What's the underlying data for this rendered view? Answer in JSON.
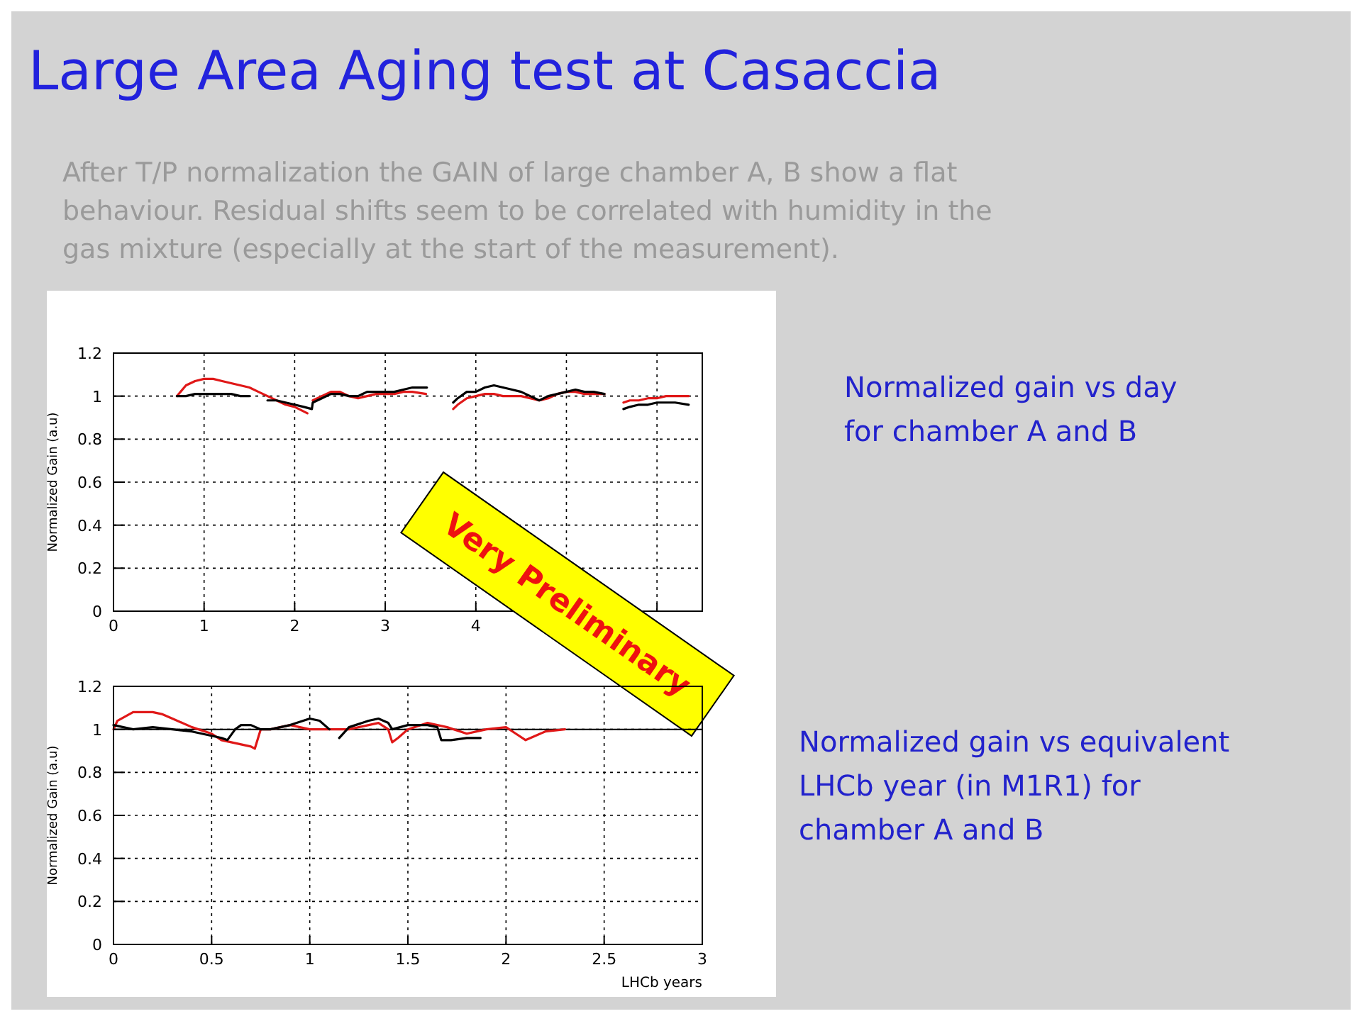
{
  "chart_data": [
    {
      "type": "line",
      "title": "Large Area Aging test at Casaccia",
      "subtitle": "After T/P normalization the GAIN of large chamber A, B show a flat behaviour. Residual shifts seem to be correlated with humidity in the gas mixture (especially at the start of the measurement).",
      "ylabel": "Normalized Gain (a.u)",
      "xlim": [
        0,
        6.5
      ],
      "xticks": [
        0,
        1,
        2,
        3,
        4,
        {
          "value": 5,
          "label": null
        },
        {
          "value": 6,
          "label": null
        }
      ],
      "ylim": [
        0,
        1.2
      ],
      "yticks": [
        0,
        0.2,
        0.4,
        0.6,
        0.8,
        1,
        1.2
      ],
      "grid": true,
      "line_style": "solid",
      "marker": "none",
      "annotations": [
        "Normalized gain vs day for chamber A and B",
        "Very Preliminary"
      ],
      "series": [
        {
          "color": "#e01818",
          "x": [
            0.7,
            0.8,
            0.9,
            1.0,
            1.1,
            1.2,
            1.3,
            1.4,
            1.5,
            1.6,
            1.7,
            1.8,
            1.9,
            2.0,
            2.14,
            2.16,
            2.2,
            2.3,
            2.4,
            2.5,
            2.6,
            2.7,
            2.8,
            2.9,
            3.0,
            3.1,
            3.2,
            3.3,
            3.45,
            3.6,
            3.75,
            3.8,
            3.9,
            4.0,
            4.1,
            4.2,
            4.3,
            4.4,
            4.5,
            4.6,
            4.7,
            4.8,
            4.9,
            5.0,
            5.1,
            5.2,
            5.3,
            5.42,
            5.5,
            5.63,
            5.7,
            5.8,
            5.9,
            6.0,
            6.1,
            6.2,
            6.35
          ],
          "values": [
            1.0,
            1.05,
            1.07,
            1.08,
            1.08,
            1.07,
            1.06,
            1.05,
            1.04,
            1.02,
            1.0,
            0.98,
            0.96,
            0.95,
            0.92,
            null,
            0.98,
            1.0,
            1.02,
            1.02,
            1.0,
            0.99,
            1.0,
            1.01,
            1.01,
            1.01,
            1.02,
            1.02,
            1.01,
            null,
            0.94,
            0.96,
            0.99,
            1.0,
            1.01,
            1.01,
            1.0,
            1.0,
            1.0,
            0.99,
            0.98,
            0.99,
            1.01,
            1.02,
            1.02,
            1.01,
            1.01,
            1.01,
            null,
            0.97,
            0.98,
            0.98,
            0.99,
            0.99,
            1.0,
            1.0,
            1.0
          ]
        },
        {
          "color": "#000000",
          "x": [
            0.7,
            0.8,
            0.9,
            1.0,
            1.1,
            1.2,
            1.3,
            1.4,
            1.5,
            1.6,
            1.7,
            1.8,
            1.9,
            2.0,
            2.1,
            2.19,
            2.2,
            2.3,
            2.4,
            2.5,
            2.6,
            2.7,
            2.8,
            2.9,
            3.0,
            3.1,
            3.2,
            3.3,
            3.46,
            3.6,
            3.75,
            3.8,
            3.9,
            4.0,
            4.1,
            4.2,
            4.3,
            4.4,
            4.5,
            4.6,
            4.7,
            4.8,
            4.9,
            5.0,
            5.1,
            5.2,
            5.3,
            5.42,
            5.5,
            5.63,
            5.7,
            5.8,
            5.9,
            6.0,
            6.1,
            6.2,
            6.35
          ],
          "values": [
            1.0,
            1.0,
            1.01,
            1.01,
            1.01,
            1.01,
            1.01,
            1.0,
            1.0,
            null,
            0.98,
            0.98,
            0.97,
            0.96,
            0.95,
            0.94,
            0.97,
            0.99,
            1.01,
            1.01,
            1.0,
            1.0,
            1.02,
            1.02,
            1.02,
            1.02,
            1.03,
            1.04,
            1.04,
            null,
            0.97,
            0.99,
            1.02,
            1.02,
            1.04,
            1.05,
            1.04,
            1.03,
            1.02,
            1.0,
            0.98,
            1.0,
            1.01,
            1.02,
            1.03,
            1.02,
            1.02,
            1.01,
            null,
            0.94,
            0.95,
            0.96,
            0.96,
            0.97,
            0.97,
            0.97,
            0.96
          ]
        }
      ]
    },
    {
      "type": "line",
      "xlabel": "LHCb years",
      "ylabel": "Normalized Gain (a.u)",
      "xlim": [
        0,
        3
      ],
      "xticks": [
        0,
        0.5,
        1,
        1.5,
        2,
        2.5,
        3
      ],
      "ylim": [
        0,
        1.2
      ],
      "yticks": [
        0,
        0.2,
        0.4,
        0.6,
        0.8,
        1,
        1.2
      ],
      "grid": true,
      "line_style": "solid",
      "marker": "none",
      "annotations": [
        "Normalized gain vs equivalent LHCb year (in M1R1) for chamber A and B"
      ],
      "ref_lines": [
        {
          "axis": "y",
          "value": 1,
          "label": null,
          "color": "#000000",
          "line_style": "solid"
        }
      ],
      "series": [
        {
          "color": "#e01818",
          "x": [
            0,
            0.02,
            0.1,
            0.2,
            0.25,
            0.3,
            0.4,
            0.5,
            0.55,
            0.6,
            0.7,
            0.72,
            0.75,
            0.8,
            0.9,
            0.95,
            1.0,
            1.1,
            1.2,
            1.3,
            1.35,
            1.4,
            1.42,
            1.45,
            1.5,
            1.6,
            1.7,
            1.8,
            1.9,
            2.0,
            2.05,
            2.1,
            2.2,
            2.3
          ],
          "values": [
            1.0,
            1.04,
            1.08,
            1.08,
            1.07,
            1.05,
            1.01,
            0.98,
            0.95,
            0.94,
            0.92,
            0.91,
            1.0,
            1.0,
            1.02,
            1.01,
            1.0,
            1.0,
            1.0,
            1.02,
            1.03,
            1.0,
            0.94,
            0.96,
            1.0,
            1.03,
            1.01,
            0.98,
            1.0,
            1.01,
            0.98,
            0.95,
            0.99,
            1.0
          ]
        },
        {
          "color": "#000000",
          "x": [
            0,
            0.1,
            0.2,
            0.3,
            0.4,
            0.45,
            0.5,
            0.55,
            0.58,
            0.62,
            0.65,
            0.7,
            0.75,
            0.8,
            0.9,
            1.0,
            1.05,
            1.1,
            1.13,
            1.15,
            1.2,
            1.3,
            1.35,
            1.4,
            1.42,
            1.5,
            1.6,
            1.65,
            1.67,
            1.72,
            1.8,
            1.87
          ],
          "values": [
            1.02,
            1.0,
            1.01,
            1.0,
            0.99,
            0.98,
            0.97,
            0.96,
            0.95,
            1.0,
            1.02,
            1.02,
            1.0,
            1.0,
            1.02,
            1.05,
            1.04,
            1.0,
            null,
            0.96,
            1.01,
            1.04,
            1.05,
            1.03,
            1.0,
            1.02,
            1.02,
            1.01,
            0.95,
            0.95,
            0.96,
            0.96
          ]
        }
      ]
    }
  ]
}
